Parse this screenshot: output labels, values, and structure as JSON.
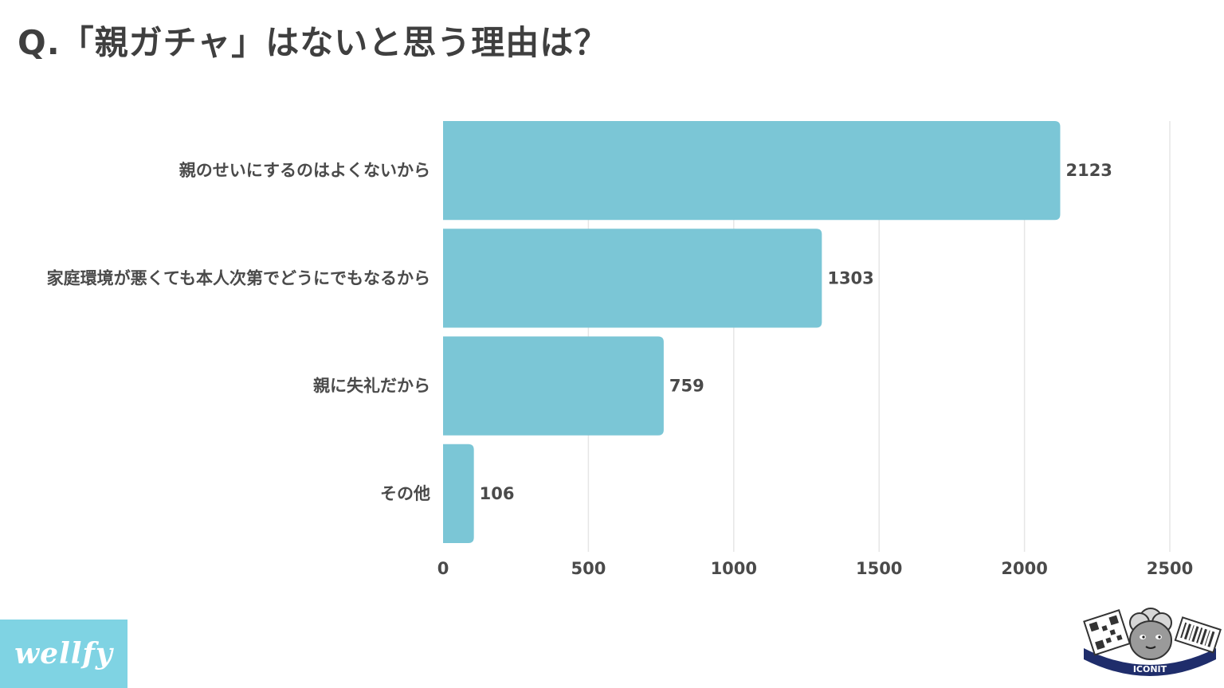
{
  "title": "Q.「親ガチャ」はないと思う理由は？",
  "chart_data": {
    "type": "bar",
    "orientation": "horizontal",
    "categories": [
      "親のせいにするのはよくないから",
      "家庭環境が悪くても本人次第でどうにでもなるから",
      "親に失礼だから",
      "その他"
    ],
    "values": [
      2123,
      1303,
      759,
      106
    ],
    "xlim": [
      0,
      2500
    ],
    "xticks": [
      0,
      500,
      1000,
      1500,
      2000,
      2500
    ],
    "grid": true,
    "bar_color": "#7bc6d6",
    "grid_color": "#e6e6e6"
  },
  "branding": {
    "left_logo": "wellfy",
    "left_logo_bg": "#7fd3e3",
    "right_logo": "ICONIT",
    "right_logo_icon": "sheep-mascot-icon"
  }
}
